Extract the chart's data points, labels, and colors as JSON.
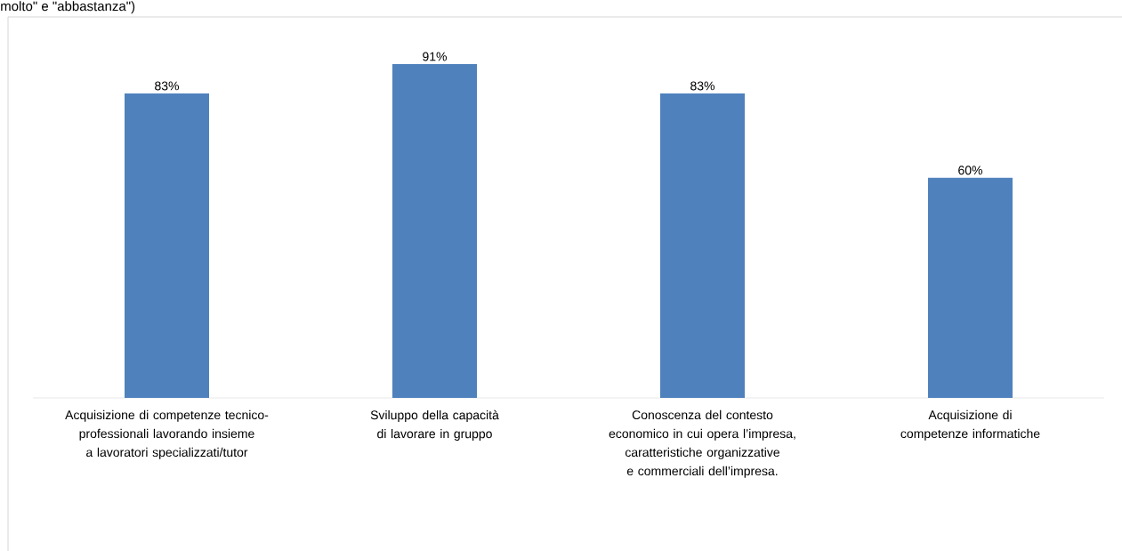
{
  "chart_data": {
    "type": "bar",
    "title": "molto\" e \"abbastanza\")",
    "categories": [
      "Acquisizione di competenze tecnico-professionali lavorando insieme a lavoratori specializzati/tutor",
      "Sviluppo della capacità di lavorare in gruppo",
      "Conoscenza del contesto economico in cui opera l’impresa, caratteristiche organizzative e commerciali dell’impresa.",
      "Acquisizione di competenze informatiche"
    ],
    "values": [
      83,
      91,
      83,
      60
    ],
    "value_labels": [
      "83%",
      "91%",
      "83%",
      "60%"
    ],
    "color": "#4f81bd"
  }
}
